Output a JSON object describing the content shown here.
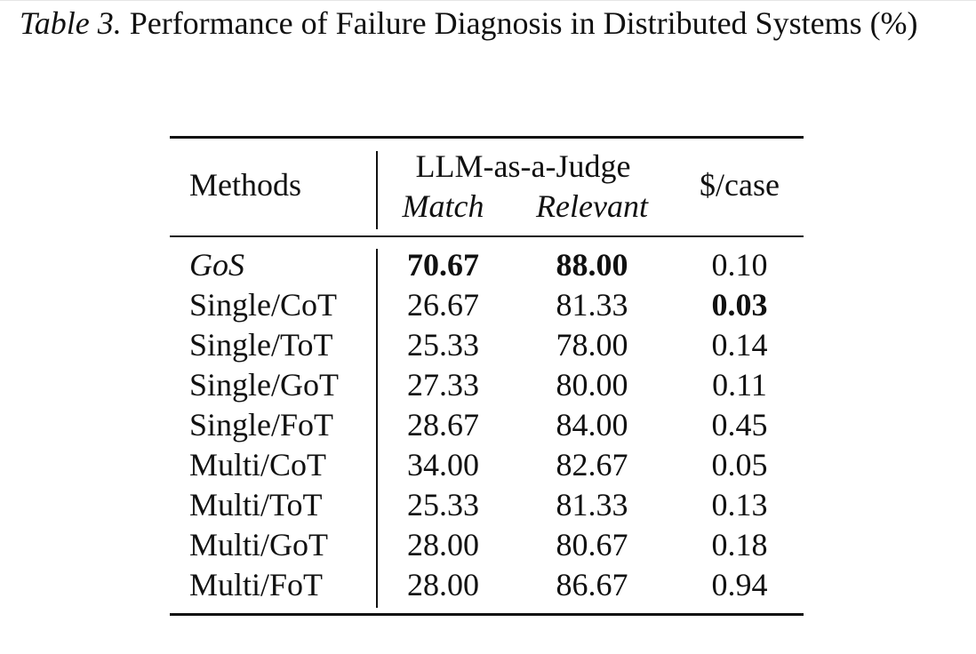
{
  "caption": {
    "label": "Table 3.",
    "text": " Performance of Failure Diagnosis in Distributed Systems (%)"
  },
  "table": {
    "headers": {
      "methods": "Methods",
      "group": "LLM-as-a-Judge",
      "match": "Match",
      "relevant": "Relevant",
      "cost": "$/case"
    },
    "rows": [
      {
        "method": "GoS",
        "match": "70.67",
        "relevant": "88.00",
        "cost": "0.10"
      },
      {
        "method": "Single/CoT",
        "match": "26.67",
        "relevant": "81.33",
        "cost": "0.03"
      },
      {
        "method": "Single/ToT",
        "match": "25.33",
        "relevant": "78.00",
        "cost": "0.14"
      },
      {
        "method": "Single/GoT",
        "match": "27.33",
        "relevant": "80.00",
        "cost": "0.11"
      },
      {
        "method": "Single/FoT",
        "match": "28.67",
        "relevant": "84.00",
        "cost": "0.45"
      },
      {
        "method": "Multi/CoT",
        "match": "34.00",
        "relevant": "82.67",
        "cost": "0.05"
      },
      {
        "method": "Multi/ToT",
        "match": "25.33",
        "relevant": "81.33",
        "cost": "0.13"
      },
      {
        "method": "Multi/GoT",
        "match": "28.00",
        "relevant": "80.67",
        "cost": "0.18"
      },
      {
        "method": "Multi/FoT",
        "match": "28.00",
        "relevant": "86.67",
        "cost": "0.94"
      }
    ]
  }
}
